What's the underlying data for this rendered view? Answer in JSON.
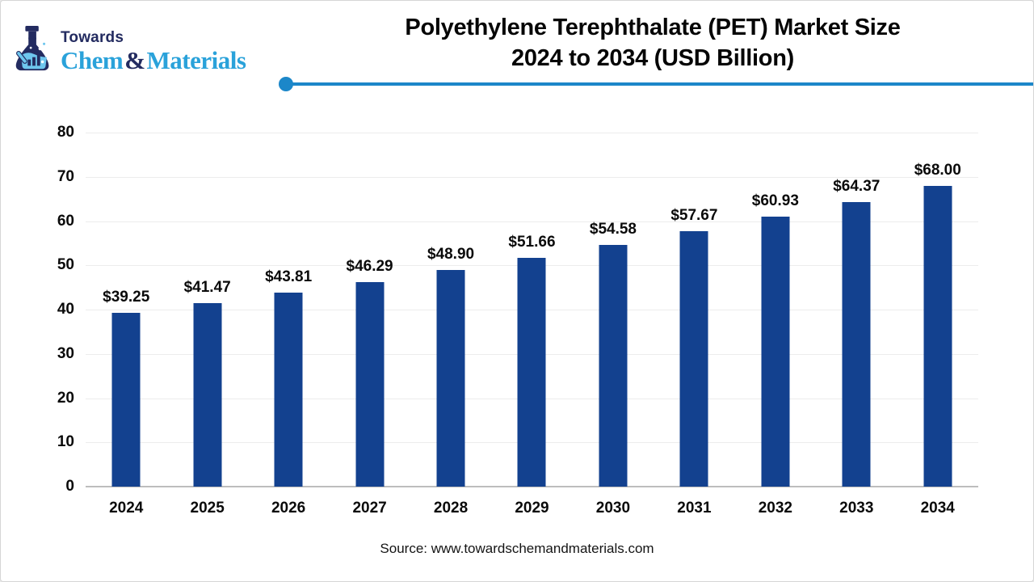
{
  "logo": {
    "top_text": "Towards",
    "name_part1": "Chem",
    "name_amp": "&",
    "name_part2": "Materials"
  },
  "header": {
    "title_line1": "Polyethylene Terephthalate (PET) Market Size",
    "title_line2": "2024 to 2034 (USD Billion)"
  },
  "footer": {
    "source": "Source: www.towardschemandmaterials.com"
  },
  "colors": {
    "bar": "#13418F",
    "divider": "#1C87C9",
    "logo_navy": "#232B60",
    "logo_blue": "#2AA2DA",
    "logo_liquid": "#6EC6EE",
    "gridline": "#ECECEC",
    "baseline": "#BDBDBD"
  },
  "chart_data": {
    "type": "bar",
    "title": "Polyethylene Terephthalate (PET) Market Size 2024 to 2034 (USD Billion)",
    "xlabel": "",
    "ylabel": "",
    "categories": [
      "2024",
      "2025",
      "2026",
      "2027",
      "2028",
      "2029",
      "2030",
      "2031",
      "2032",
      "2033",
      "2034"
    ],
    "values": [
      39.25,
      41.47,
      43.81,
      46.29,
      48.9,
      51.66,
      54.58,
      57.67,
      60.93,
      64.37,
      68.0
    ],
    "value_labels": [
      "$39.25",
      "$41.47",
      "$43.81",
      "$46.29",
      "$48.90",
      "$51.66",
      "$54.58",
      "$57.67",
      "$60.93",
      "$64.37",
      "$68.00"
    ],
    "ylim": [
      0,
      80
    ],
    "yticks": [
      0,
      10,
      20,
      30,
      40,
      50,
      60,
      70,
      80
    ],
    "grid": "horizontal",
    "legend": false
  }
}
